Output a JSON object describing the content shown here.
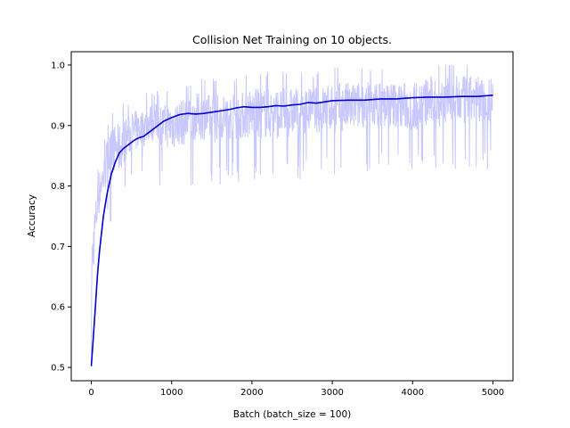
{
  "chart_data": {
    "type": "line",
    "title": "Collision Net Training on 10 objects.",
    "xlabel": "Batch (batch_size = 100)",
    "ylabel": "Accuracy",
    "xlim": [
      -250,
      5250
    ],
    "ylim": [
      0.478,
      1.022
    ],
    "xticks": [
      0,
      1000,
      2000,
      3000,
      4000,
      5000
    ],
    "yticks": [
      0.5,
      0.6,
      0.7,
      0.8,
      0.9,
      1.0
    ],
    "ytick_labels": [
      "0.5",
      "0.6",
      "0.7",
      "0.8",
      "0.9",
      "1.0"
    ],
    "grid": false,
    "legend": "none",
    "series": [
      {
        "role": "raw",
        "color": "#c8c8ff",
        "x": [
          0,
          20,
          40,
          60,
          80,
          100,
          120,
          150,
          180,
          200,
          250,
          300,
          350,
          400,
          450,
          500,
          550,
          600,
          650,
          700,
          800,
          900,
          1000,
          1100,
          1200,
          1300,
          1400,
          1500,
          1600,
          1800,
          2000,
          2200,
          2400,
          2600,
          2800,
          3000,
          3200,
          3400,
          3600,
          3800,
          4000,
          4200,
          4400,
          4600,
          4800,
          5000
        ],
        "y_low": [
          0.58,
          0.62,
          0.66,
          0.7,
          0.72,
          0.74,
          0.76,
          0.77,
          0.78,
          0.79,
          0.8,
          0.81,
          0.8,
          0.82,
          0.83,
          0.84,
          0.84,
          0.85,
          0.85,
          0.86,
          0.86,
          0.85,
          0.84,
          0.85,
          0.85,
          0.86,
          0.86,
          0.85,
          0.86,
          0.86,
          0.86,
          0.86,
          0.86,
          0.87,
          0.87,
          0.87,
          0.87,
          0.88,
          0.88,
          0.88,
          0.87,
          0.88,
          0.88,
          0.88,
          0.89,
          0.88
        ],
        "y_high": [
          0.73,
          0.76,
          0.79,
          0.8,
          0.82,
          0.84,
          0.85,
          0.86,
          0.88,
          0.9,
          0.91,
          0.92,
          0.92,
          0.93,
          0.93,
          0.94,
          0.94,
          0.94,
          0.94,
          0.95,
          0.95,
          0.95,
          0.96,
          0.96,
          0.96,
          0.97,
          0.97,
          0.97,
          0.97,
          0.97,
          0.98,
          0.98,
          0.98,
          0.98,
          0.98,
          0.99,
          0.99,
          0.99,
          0.99,
          0.99,
          0.99,
          1.0,
          1.0,
          1.0,
          1.0,
          1.0
        ]
      },
      {
        "role": "smoothed",
        "color": "#0000cc",
        "x": [
          0,
          25,
          50,
          75,
          100,
          125,
          150,
          175,
          200,
          250,
          300,
          350,
          400,
          450,
          500,
          550,
          600,
          650,
          700,
          800,
          900,
          1000,
          1100,
          1200,
          1300,
          1400,
          1500,
          1600,
          1700,
          1800,
          1900,
          2000,
          2100,
          2200,
          2300,
          2400,
          2500,
          2600,
          2700,
          2800,
          2900,
          3000,
          3200,
          3400,
          3600,
          3800,
          4000,
          4200,
          4400,
          4600,
          4800,
          5000
        ],
        "y": [
          0.502,
          0.55,
          0.6,
          0.65,
          0.69,
          0.72,
          0.75,
          0.77,
          0.79,
          0.82,
          0.84,
          0.855,
          0.862,
          0.867,
          0.872,
          0.877,
          0.88,
          0.882,
          0.887,
          0.897,
          0.907,
          0.913,
          0.918,
          0.92,
          0.919,
          0.92,
          0.922,
          0.924,
          0.926,
          0.929,
          0.931,
          0.93,
          0.93,
          0.931,
          0.933,
          0.932,
          0.934,
          0.935,
          0.938,
          0.937,
          0.939,
          0.941,
          0.942,
          0.942,
          0.944,
          0.944,
          0.946,
          0.947,
          0.947,
          0.948,
          0.948,
          0.95
        ]
      }
    ]
  }
}
